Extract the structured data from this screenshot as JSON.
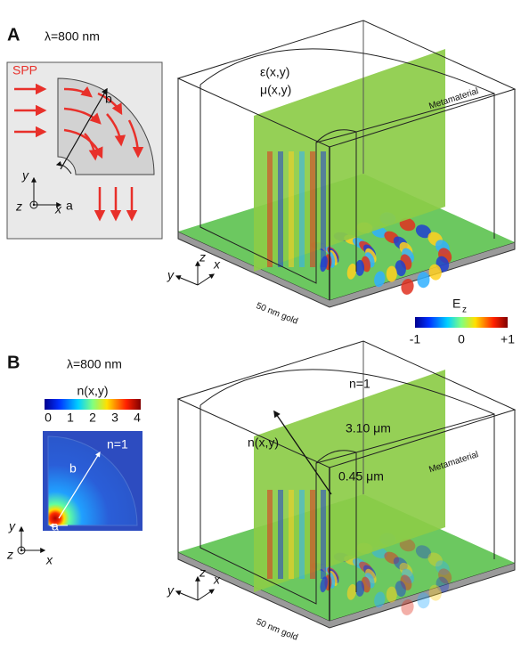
{
  "panel_a": {
    "label": "A",
    "wavelength": "λ=800 nm",
    "inset": {
      "source": "SPP",
      "b": "b",
      "a": "a",
      "axes": [
        "y",
        "z",
        "x"
      ]
    },
    "epsilon": "ε(x,y)",
    "mu": "μ(x,y)",
    "metamaterial": "Metamaterial",
    "gold": "50 nm gold",
    "axes": [
      "z",
      "y",
      "x"
    ],
    "colorbar": {
      "title": "E",
      "title_sub": "z",
      "ticks": [
        "-1",
        "0",
        "+1"
      ]
    }
  },
  "panel_b": {
    "label": "B",
    "wavelength": "λ=800 nm",
    "inset": {
      "colorbar_title": "n(x,y)",
      "colorbar_ticks": [
        "0",
        "1",
        "2",
        "3",
        "4"
      ],
      "medium": "n=1",
      "b": "b",
      "a": "a",
      "axes": [
        "y",
        "z",
        "x"
      ]
    },
    "medium": "n=1",
    "index": "n(x,y)",
    "outer_radius": "3.10 μm",
    "inner_radius": "0.45 μm",
    "metamaterial": "Metamaterial",
    "gold": "50 nm gold",
    "axes": [
      "z",
      "y",
      "x"
    ]
  }
}
